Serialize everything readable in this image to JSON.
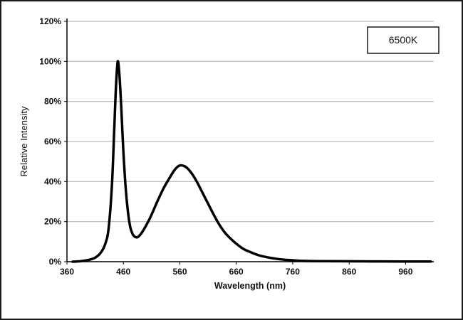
{
  "figure": {
    "background": "#ffffff",
    "border_color": "#1a1a1a"
  },
  "chart_data": {
    "type": "line",
    "title": "",
    "xlabel": "Wavelength (nm)",
    "ylabel": "Relative Intensity",
    "legend": [
      "6500K"
    ],
    "legend_position": "top-right",
    "grid": "horizontal-only",
    "gridline_color": "#aaaaaa",
    "axis_color": "#000000",
    "xlim": [
      360,
      1010
    ],
    "ylim": [
      0,
      120
    ],
    "xticks": [
      360,
      460,
      560,
      660,
      760,
      860,
      960
    ],
    "xtick_labels": [
      "360",
      "460",
      "560",
      "660",
      "760",
      "860",
      "960"
    ],
    "yticks": [
      0,
      20,
      40,
      60,
      80,
      100,
      120
    ],
    "ytick_labels": [
      "0%",
      "20%",
      "40%",
      "60%",
      "80%",
      "100%",
      "120%"
    ],
    "series": [
      {
        "name": "6500K",
        "color": "#000000",
        "line_width": 3.5,
        "x": [
          370,
          385,
          400,
          410,
          420,
          428,
          434,
          440,
          444,
          447,
          450,
          453,
          456,
          460,
          464,
          468,
          472,
          476,
          480,
          485,
          490,
          496,
          503,
          510,
          520,
          530,
          540,
          550,
          558,
          565,
          572,
          580,
          590,
          600,
          610,
          620,
          630,
          640,
          650,
          660,
          672,
          685,
          700,
          715,
          730,
          745,
          760,
          780,
          810,
          850,
          900,
          950,
          1005
        ],
        "y": [
          0,
          0.3,
          1,
          2,
          4.5,
          9,
          17,
          40,
          68,
          88,
          100,
          93,
          78,
          55,
          37,
          25,
          17.5,
          14,
          12.5,
          12.2,
          13.5,
          16,
          19.5,
          23.5,
          30,
          36,
          41,
          45.5,
          47.8,
          48,
          47,
          44.5,
          40,
          34.5,
          29,
          23.5,
          18.5,
          14.5,
          11.5,
          9,
          6.5,
          4.8,
          3.2,
          2.2,
          1.5,
          1,
          0.7,
          0.4,
          0.25,
          0.2,
          0.15,
          0.1,
          0.1
        ]
      }
    ]
  }
}
